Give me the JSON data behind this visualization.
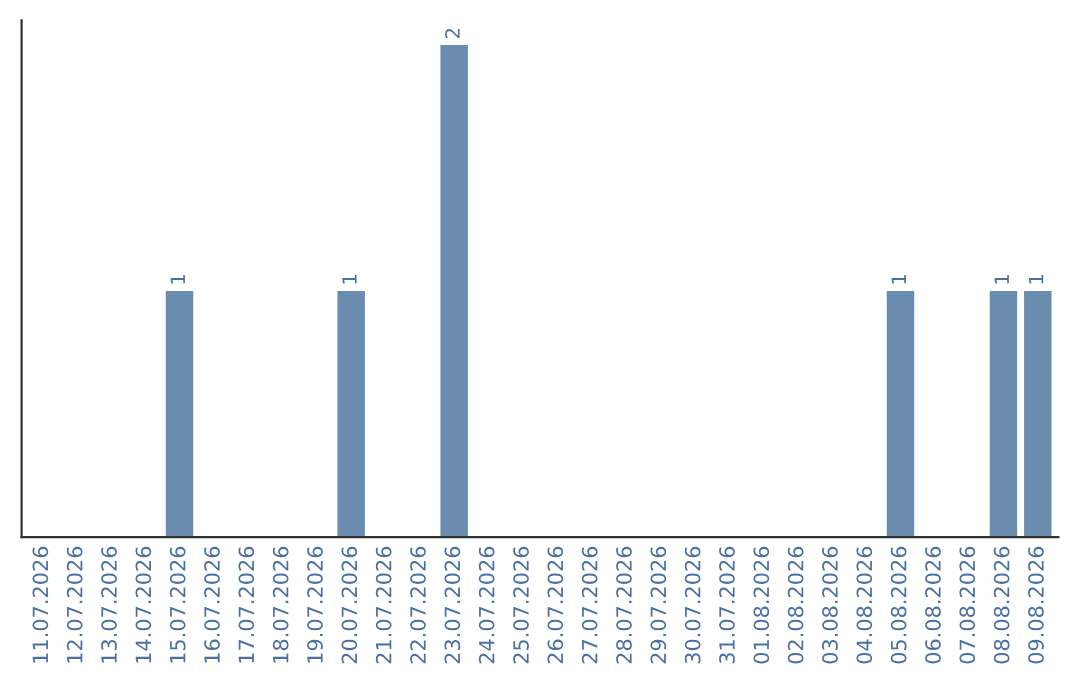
{
  "chart_data": {
    "type": "bar",
    "categories": [
      "11.07.2026",
      "12.07.2026",
      "13.07.2026",
      "14.07.2026",
      "15.07.2026",
      "16.07.2026",
      "17.07.2026",
      "18.07.2026",
      "19.07.2026",
      "20.07.2026",
      "21.07.2026",
      "22.07.2026",
      "23.07.2026",
      "24.07.2026",
      "25.07.2026",
      "26.07.2026",
      "27.07.2026",
      "28.07.2026",
      "29.07.2026",
      "30.07.2026",
      "31.07.2026",
      "01.08.2026",
      "02.08.2026",
      "03.08.2026",
      "04.08.2026",
      "05.08.2026",
      "06.08.2026",
      "07.08.2026",
      "08.08.2026",
      "09.08.2026"
    ],
    "values": [
      0,
      0,
      0,
      0,
      1,
      0,
      0,
      0,
      0,
      1,
      0,
      0,
      2,
      0,
      0,
      0,
      0,
      0,
      0,
      0,
      0,
      0,
      0,
      0,
      0,
      1,
      0,
      0,
      1,
      1
    ],
    "value_labels": [
      null,
      null,
      null,
      null,
      "1",
      null,
      null,
      null,
      null,
      "1",
      null,
      null,
      "2",
      null,
      null,
      null,
      null,
      null,
      null,
      null,
      null,
      null,
      null,
      null,
      null,
      "1",
      null,
      null,
      "1",
      "1"
    ],
    "color": "#6a8caf",
    "tick_labels": "x",
    "grid": false,
    "legend": false
  }
}
